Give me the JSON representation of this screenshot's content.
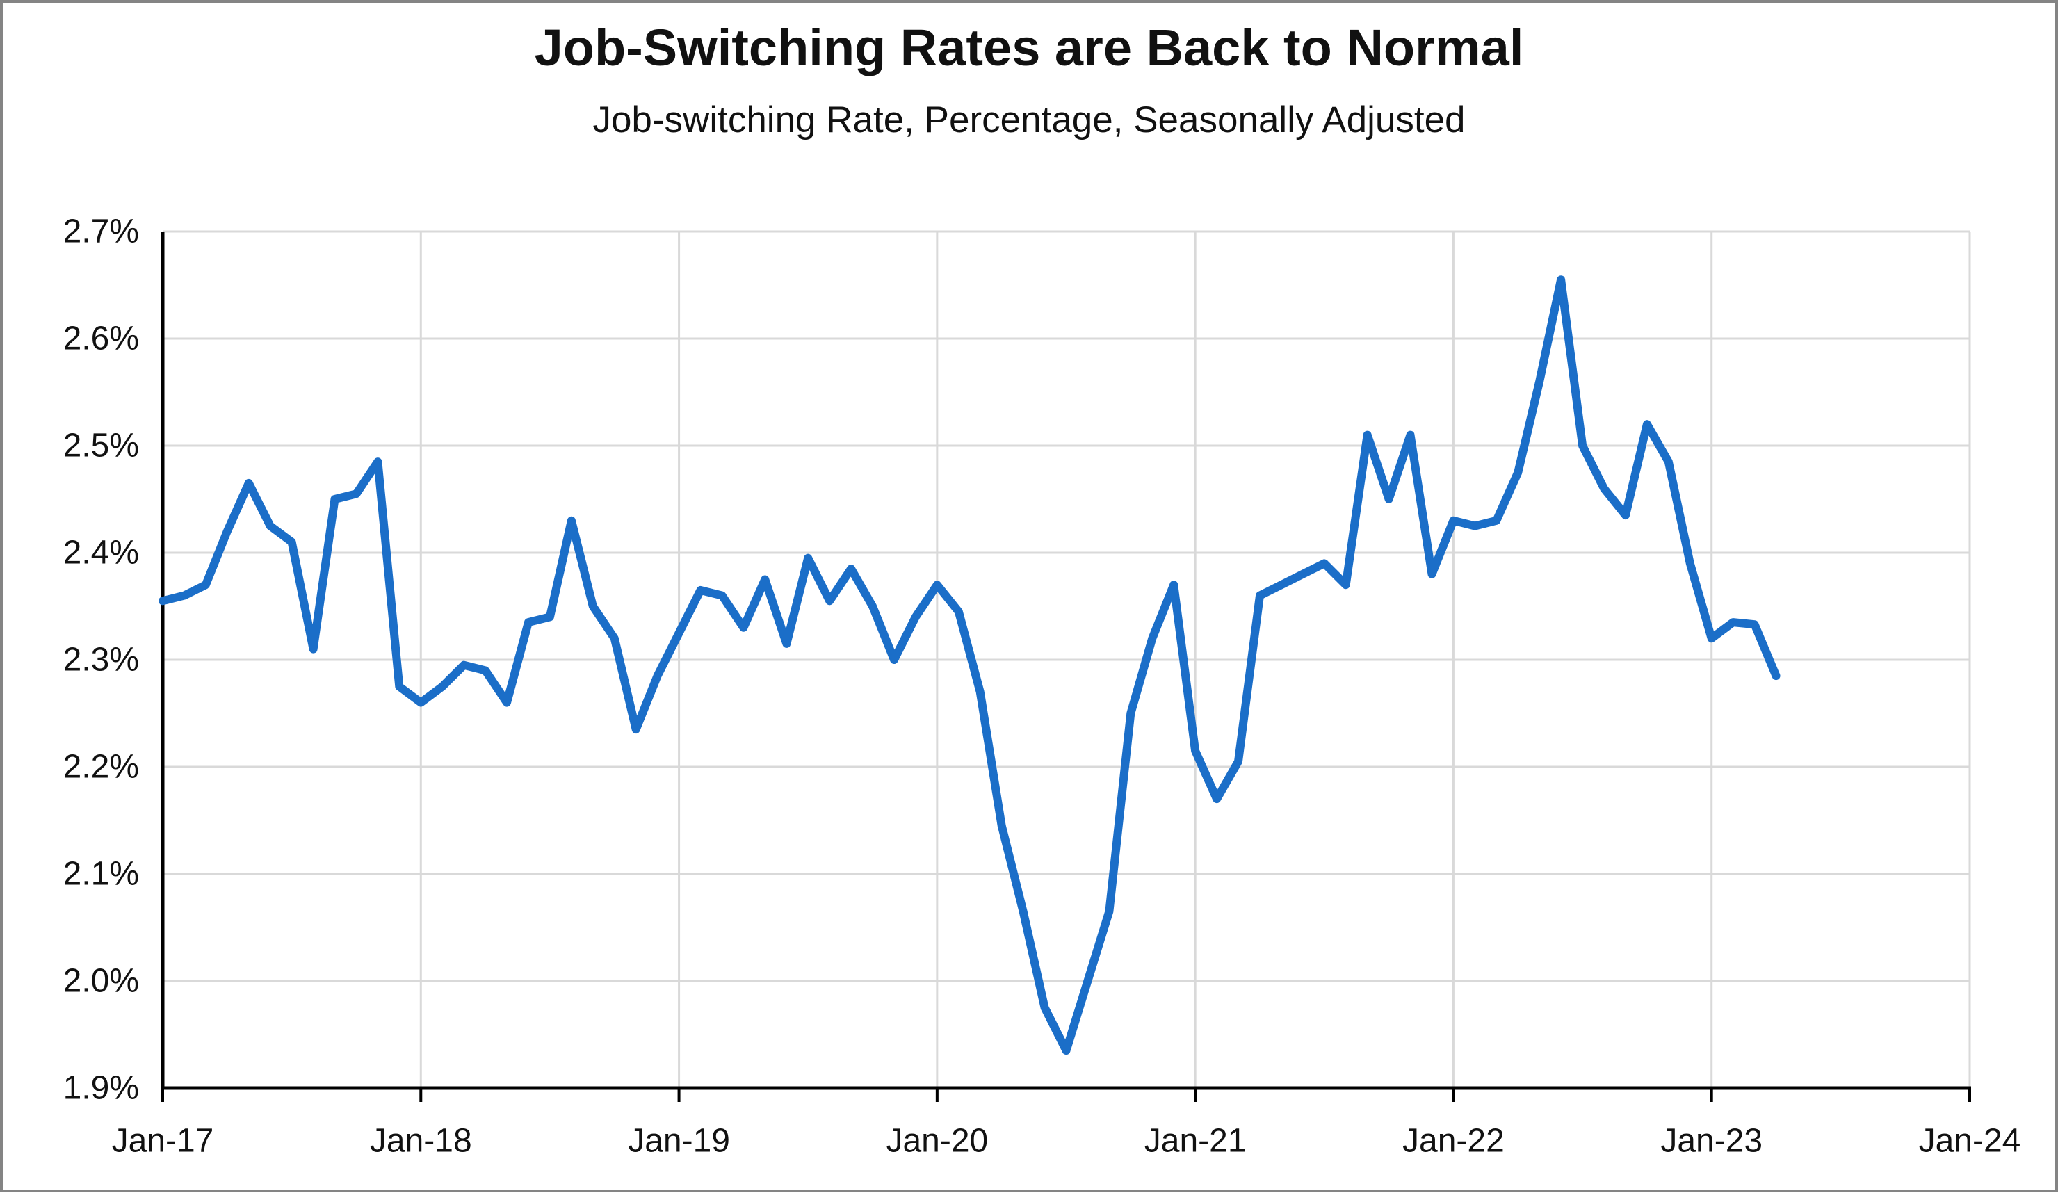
{
  "page": {
    "title": "Job-Switching Rates are Back to Normal",
    "subtitle": "Job-switching Rate, Percentage, Seasonally Adjusted"
  },
  "chart_data": {
    "type": "line",
    "title": "Job-Switching Rates are Back to Normal",
    "subtitle": "Job-switching Rate, Percentage, Seasonally Adjusted",
    "xlabel": "",
    "ylabel": "",
    "ylim": [
      1.9,
      2.7
    ],
    "y_tick_step": 0.1,
    "y_ticks": [
      {
        "label": "2.7%",
        "value": 2.7
      },
      {
        "label": "2.6%",
        "value": 2.6
      },
      {
        "label": "2.5%",
        "value": 2.5
      },
      {
        "label": "2.4%",
        "value": 2.4
      },
      {
        "label": "2.3%",
        "value": 2.3
      },
      {
        "label": "2.2%",
        "value": 2.2
      },
      {
        "label": "2.1%",
        "value": 2.1
      },
      {
        "label": "2.0%",
        "value": 2.0
      },
      {
        "label": "1.9%",
        "value": 1.9
      }
    ],
    "x_ticks": [
      "Jan-17",
      "Jan-18",
      "Jan-19",
      "Jan-20",
      "Jan-21",
      "Jan-22",
      "Jan-23",
      "Jan-24"
    ],
    "months_per_tick": 12,
    "x_total_months": 84,
    "grid_on": true,
    "legend": "none",
    "grid_color": "#d9d9d9",
    "axis_color": "#000000",
    "label_color": "#111111",
    "background_color": "#ffffff",
    "frame_color": "#848484",
    "series": [
      {
        "name": "Job-switching rate (%, seasonally adjusted)",
        "color": "#1b6ec8",
        "start": "Jan-17",
        "frequency": "monthly",
        "values": [
          2.355,
          2.36,
          2.37,
          2.42,
          2.465,
          2.425,
          2.41,
          2.31,
          2.45,
          2.455,
          2.485,
          2.275,
          2.26,
          2.275,
          2.295,
          2.29,
          2.26,
          2.335,
          2.34,
          2.43,
          2.35,
          2.32,
          2.235,
          2.285,
          2.325,
          2.365,
          2.36,
          2.33,
          2.375,
          2.315,
          2.395,
          2.355,
          2.385,
          2.35,
          2.3,
          2.34,
          2.37,
          2.345,
          2.27,
          2.145,
          2.065,
          1.975,
          1.935,
          2.0,
          2.065,
          2.25,
          2.32,
          2.37,
          2.215,
          2.17,
          2.205,
          2.36,
          2.37,
          2.38,
          2.39,
          2.37,
          2.51,
          2.45,
          2.51,
          2.38,
          2.43,
          2.425,
          2.43,
          2.475,
          2.56,
          2.655,
          2.5,
          2.46,
          2.435,
          2.52,
          2.485,
          2.39,
          2.32,
          2.335,
          2.333,
          2.285
        ]
      }
    ]
  }
}
